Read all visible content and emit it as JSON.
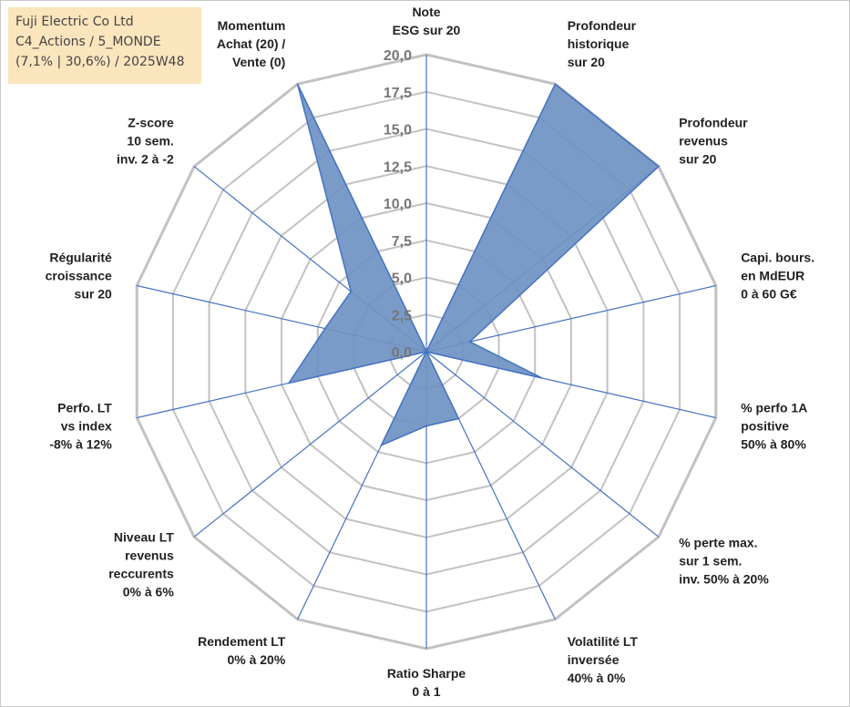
{
  "info": {
    "line1": "Fuji Electric Co Ltd",
    "line2": "C4_Actions / 5_MONDE",
    "line3": "(7,1% | 30,6%) / 2025W48"
  },
  "colors": {
    "fill": "#6f93c2",
    "stroke": "#4472c4",
    "grid": "#c2c2c2",
    "spoke": "#4472c4",
    "info_bg": "#fbe5bd"
  },
  "chart_data": {
    "type": "radar",
    "title": "",
    "rlim": [
      0,
      20
    ],
    "ticks": [
      "0,0",
      "2,5",
      "5,0",
      "7,5",
      "10,0",
      "12,5",
      "15,0",
      "17,5",
      "20,0"
    ],
    "axes": [
      [
        "Note",
        "ESG sur 20"
      ],
      [
        "Profondeur",
        "historique",
        "sur 20"
      ],
      [
        "Profondeur",
        "revenus",
        "sur 20"
      ],
      [
        "Capi. bours.",
        "en MdEUR",
        "0 à 60 G€"
      ],
      [
        "% perfo 1A",
        "positive",
        "50% à 80%"
      ],
      [
        "% perte max.",
        "sur 1 sem.",
        "inv. 50% à 20%"
      ],
      [
        "Volatilité LT",
        "inversée",
        "40% à 0%"
      ],
      [
        "Ratio Sharpe",
        "0 à 1"
      ],
      [
        "Rendement LT",
        "0% à 20%"
      ],
      [
        "Niveau LT",
        "revenus",
        "reccurents",
        "0% à 6%"
      ],
      [
        "Perfo. LT",
        "vs index",
        "-8% à 12%"
      ],
      [
        "Régularité",
        "croissance",
        "sur 20"
      ],
      [
        "Z-score",
        "10 sem.",
        "inv. 2 à -2"
      ],
      [
        "Momentum",
        "Achat (20) /",
        "Vente (0)"
      ]
    ],
    "series": [
      {
        "name": "Fuji Electric Co Ltd",
        "values": [
          0,
          20,
          20,
          3,
          8,
          0,
          5,
          5,
          7,
          0,
          9.5,
          7,
          6.5,
          20
        ]
      }
    ]
  }
}
